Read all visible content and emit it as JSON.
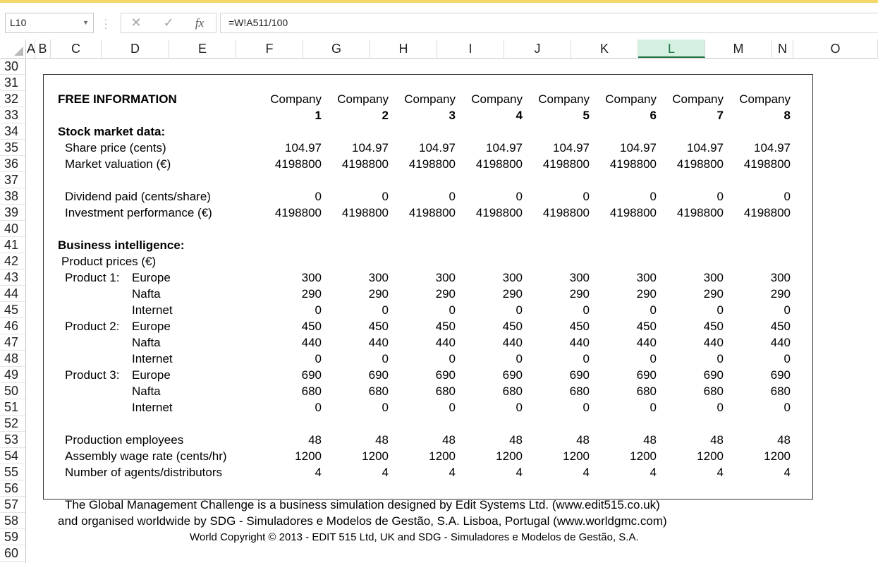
{
  "app": {
    "name_box": "L10",
    "formula": "=W!A511/100"
  },
  "columns": [
    "A",
    "B",
    "C",
    "D",
    "E",
    "F",
    "G",
    "H",
    "I",
    "J",
    "K",
    "L",
    "M",
    "N",
    "O"
  ],
  "active_column": "L",
  "rows": [
    "30",
    "31",
    "32",
    "33",
    "34",
    "35",
    "36",
    "37",
    "38",
    "39",
    "40",
    "41",
    "42",
    "43",
    "44",
    "45",
    "46",
    "47",
    "48",
    "49",
    "50",
    "51",
    "52",
    "53",
    "54",
    "55",
    "56",
    "57",
    "58",
    "59",
    "60"
  ],
  "report": {
    "title": "FREE INFORMATION",
    "company_word": "Company",
    "companies": [
      "1",
      "2",
      "3",
      "4",
      "5",
      "6",
      "7",
      "8"
    ],
    "stock_heading": "Stock market data:",
    "share_price": {
      "label": "Share price (cents)",
      "values": [
        "104.97",
        "104.97",
        "104.97",
        "104.97",
        "104.97",
        "104.97",
        "104.97",
        "104.97"
      ]
    },
    "market_valuation": {
      "label": "Market valuation (€)",
      "values": [
        "4198800",
        "4198800",
        "4198800",
        "4198800",
        "4198800",
        "4198800",
        "4198800",
        "4198800"
      ]
    },
    "dividend": {
      "label": "Dividend paid (cents/share)",
      "values": [
        "0",
        "0",
        "0",
        "0",
        "0",
        "0",
        "0",
        "0"
      ]
    },
    "investment": {
      "label": "Investment performance (€)",
      "values": [
        "4198800",
        "4198800",
        "4198800",
        "4198800",
        "4198800",
        "4198800",
        "4198800",
        "4198800"
      ]
    },
    "bi_heading": "Business intelligence:",
    "product_prices_label": "Product prices (€)",
    "products": [
      {
        "label": "Product 1:",
        "markets": [
          {
            "name": "Europe",
            "values": [
              "300",
              "300",
              "300",
              "300",
              "300",
              "300",
              "300",
              "300"
            ]
          },
          {
            "name": "Nafta",
            "values": [
              "290",
              "290",
              "290",
              "290",
              "290",
              "290",
              "290",
              "290"
            ]
          },
          {
            "name": "Internet",
            "values": [
              "0",
              "0",
              "0",
              "0",
              "0",
              "0",
              "0",
              "0"
            ]
          }
        ]
      },
      {
        "label": "Product 2:",
        "markets": [
          {
            "name": "Europe",
            "values": [
              "450",
              "450",
              "450",
              "450",
              "450",
              "450",
              "450",
              "450"
            ]
          },
          {
            "name": "Nafta",
            "values": [
              "440",
              "440",
              "440",
              "440",
              "440",
              "440",
              "440",
              "440"
            ]
          },
          {
            "name": "Internet",
            "values": [
              "0",
              "0",
              "0",
              "0",
              "0",
              "0",
              "0",
              "0"
            ]
          }
        ]
      },
      {
        "label": "Product 3:",
        "markets": [
          {
            "name": "Europe",
            "values": [
              "690",
              "690",
              "690",
              "690",
              "690",
              "690",
              "690",
              "690"
            ]
          },
          {
            "name": "Nafta",
            "values": [
              "680",
              "680",
              "680",
              "680",
              "680",
              "680",
              "680",
              "680"
            ]
          },
          {
            "name": "Internet",
            "values": [
              "0",
              "0",
              "0",
              "0",
              "0",
              "0",
              "0",
              "0"
            ]
          }
        ]
      }
    ],
    "production_employees": {
      "label": "Production employees",
      "values": [
        "48",
        "48",
        "48",
        "48",
        "48",
        "48",
        "48",
        "48"
      ]
    },
    "wage_rate": {
      "label": "Assembly wage rate (cents/hr)",
      "values": [
        "1200",
        "1200",
        "1200",
        "1200",
        "1200",
        "1200",
        "1200",
        "1200"
      ]
    },
    "agents": {
      "label": "Number of agents/distributors",
      "values": [
        "4",
        "4",
        "4",
        "4",
        "4",
        "4",
        "4",
        "4"
      ]
    }
  },
  "footer": {
    "line1": "The Global Management Challenge is a business simulation designed by Edit Systems Ltd.  (www.edit515.co.uk)",
    "line2": "and organised worldwide by SDG - Simuladores e Modelos de Gestão, S.A. Lisboa, Portugal  (www.worldgmc.com)",
    "line3": "World Copyright © 2013 - EDIT 515 Ltd, UK and SDG - Simuladores e Modelos de Gestão, S.A."
  }
}
